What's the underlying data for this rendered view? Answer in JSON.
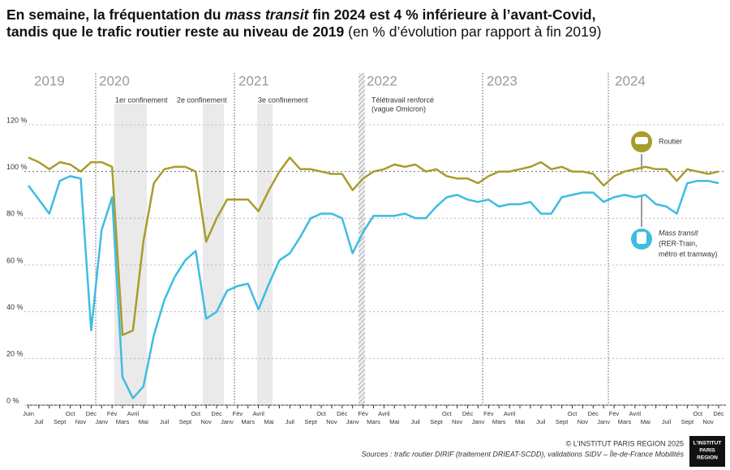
{
  "chart_data": {
    "type": "line",
    "title": [
      [
        "En semaine, la fréquentation du ",
        "mass transit",
        " fin 2024 est 4 % inférieure à l’avant-Covid,"
      ],
      [
        "tandis que le trafic routier reste au niveau de 2019",
        " (en % d’évolution par rapport à fin 2019)"
      ]
    ],
    "years": [
      "2019",
      "2020",
      "2021",
      "2022",
      "2023",
      "2024"
    ],
    "annotations": [
      "1er confinement",
      "2e confinement",
      "3e confinement",
      "Télétravail renforcé",
      "(vague Omicron)"
    ],
    "categories": [
      "Juin",
      "Juil",
      null,
      "Sept",
      "Oct",
      "Nov",
      "Déc",
      "Janv",
      "Fév",
      "Mars",
      "Avril",
      "Mai",
      null,
      "Juil",
      null,
      "Sept",
      "Oct",
      "Nov",
      "Déc",
      "Janv",
      "Fév",
      "Mars",
      "Avril",
      "Mai",
      null,
      "Juil",
      null,
      "Sept",
      "Oct",
      "Nov",
      "Déc",
      "Janv",
      "Fév",
      "Mars",
      "Avril",
      "Mai",
      null,
      "Juil",
      null,
      "Sept",
      "Oct",
      "Nov",
      "Déc",
      "Janv",
      "Fév",
      "Mars",
      "Avril",
      "Mai",
      null,
      "Juil",
      null,
      "Sept",
      "Oct",
      "Nov",
      "Déc",
      "Janv",
      "Fév",
      "Mars",
      "Avril",
      "Mai",
      null,
      "Juil",
      null,
      "Sept",
      "Oct",
      "Nov",
      "Déc"
    ],
    "series": [
      {
        "name": "Routier",
        "color": "#a89c2c",
        "values": [
          106,
          104,
          101,
          104,
          103,
          100,
          104,
          104,
          102,
          30,
          32,
          70,
          95,
          101,
          102,
          102,
          100,
          70,
          80,
          88,
          88,
          88,
          83,
          92,
          100,
          106,
          101,
          101,
          100,
          99,
          99,
          92,
          97,
          100,
          101,
          103,
          102,
          103,
          100,
          101,
          98,
          97,
          97,
          95,
          98,
          100,
          100,
          101,
          102,
          104,
          101,
          102,
          100,
          100,
          99,
          94,
          98,
          100,
          101,
          102,
          101,
          101,
          96,
          101,
          100,
          99,
          100
        ]
      },
      {
        "name": "Mass transit",
        "color": "#3dbde2",
        "values": [
          94,
          88,
          82,
          96,
          98,
          97,
          32,
          75,
          89,
          12,
          3,
          8,
          30,
          45,
          55,
          62,
          66,
          37,
          40,
          49,
          51,
          52,
          41,
          52,
          62,
          65,
          72,
          80,
          82,
          82,
          80,
          65,
          74,
          81,
          81,
          81,
          82,
          80,
          80,
          85,
          89,
          90,
          88,
          87,
          88,
          85,
          86,
          86,
          87,
          82,
          82,
          89,
          90,
          91,
          91,
          87,
          89,
          90,
          89,
          90,
          86,
          85,
          82,
          95,
          96,
          96,
          95
        ]
      }
    ],
    "legend_note": [
      "(RER-Train,",
      "métro et tramway)"
    ],
    "ylim": [
      0,
      120
    ],
    "yticks": [
      {
        "value": 0,
        "label": "0 %"
      },
      {
        "value": 20,
        "label": "20 %"
      },
      {
        "value": 40,
        "label": "40 %"
      },
      {
        "value": 60,
        "label": "60 %"
      },
      {
        "value": 80,
        "label": "80 %"
      },
      {
        "value": 100,
        "label": "100 %"
      },
      {
        "value": 120,
        "label": "120 %"
      }
    ],
    "grid": true,
    "credit": "© L’INSTITUT PARIS REGION 2025",
    "source": "Sources : trafic routier DIRIF (traitement DRIEAT-SCDD), validations SIDV – Île-de-France Mobilités",
    "logo": [
      "L’INSTITUT",
      "PARIS",
      "REGION"
    ]
  }
}
